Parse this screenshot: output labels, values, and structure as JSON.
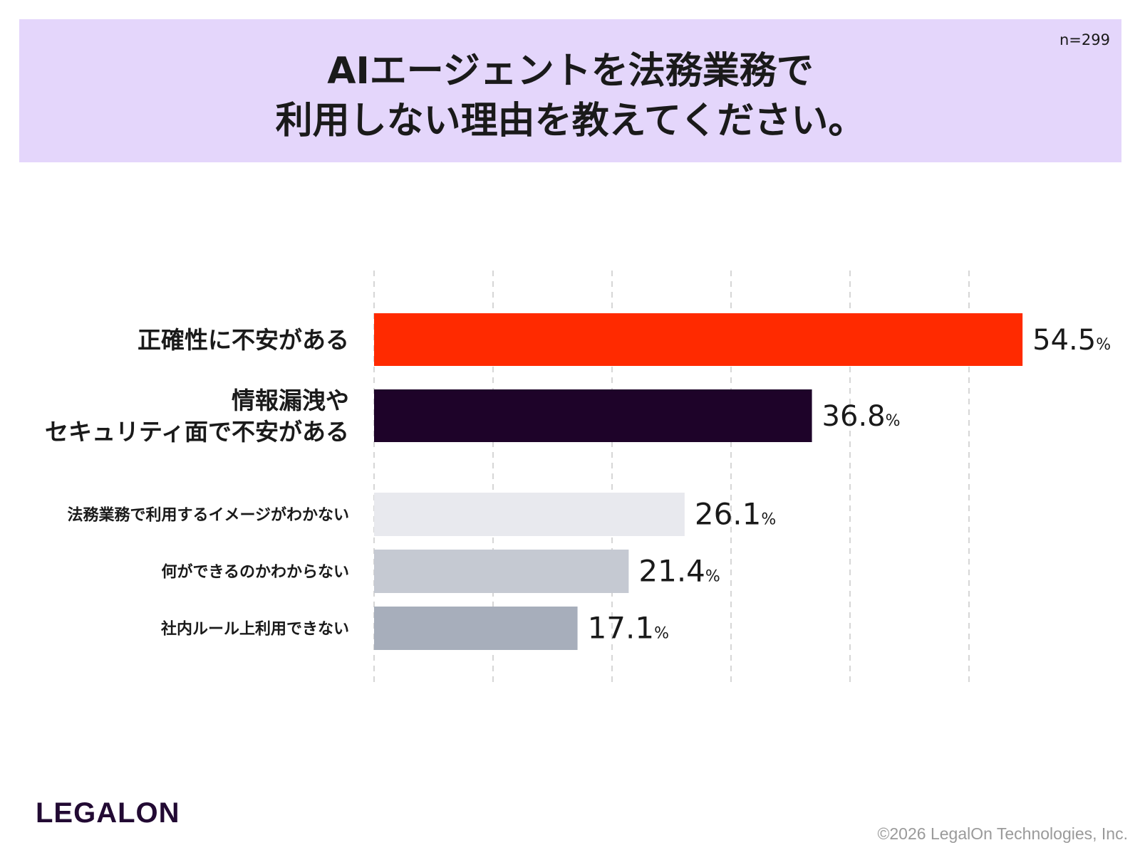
{
  "header": {
    "title_line1": "AIエージェントを法務業務で",
    "title_line2": "利用しない理由を教えてください。",
    "sample_size": "n=299"
  },
  "chart_data": {
    "type": "bar",
    "orientation": "horizontal",
    "title": "AIエージェントを法務業務で利用しない理由を教えてください。",
    "unit": "%",
    "xlim": [
      0,
      60
    ],
    "gridlines": "dashed vertical",
    "categories": [
      [
        "正確性に不安がある"
      ],
      [
        "情報漏洩や",
        "セキュリティ面で不安がある"
      ],
      [
        "法務業務で利用するイメージがわかない"
      ],
      [
        "何ができるのかわからない"
      ],
      [
        "社内ルール上利用できない"
      ]
    ],
    "values": [
      54.5,
      36.8,
      26.1,
      21.4,
      17.1
    ],
    "value_labels": [
      "54.5",
      "36.8",
      "26.1",
      "21.4",
      "17.1"
    ],
    "colors": [
      "#ff2a00",
      "#1e0329",
      "#e8e9ee",
      "#c5c9d2",
      "#a7aebb"
    ]
  },
  "footer": {
    "logo": "LEGALON",
    "copyright": "©2026 LegalOn Technologies, Inc."
  }
}
